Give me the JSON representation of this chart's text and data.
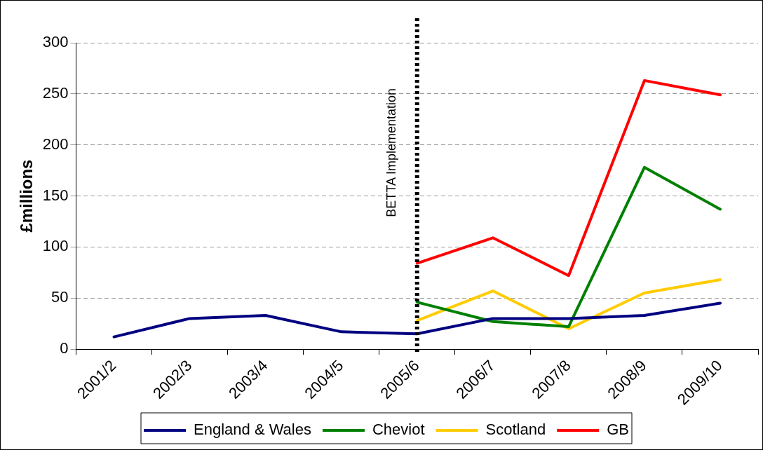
{
  "chart_data": {
    "type": "line",
    "ylabel": "£millions",
    "categories": [
      "2001/2",
      "2002/3",
      "2003/4",
      "2004/5",
      "2005/6",
      "2006/7",
      "2007/8",
      "2008/9",
      "2009/10"
    ],
    "series": [
      {
        "name": "England & Wales",
        "color": "#000080",
        "values": [
          12,
          30,
          33,
          17,
          15,
          30,
          30,
          33,
          45
        ]
      },
      {
        "name": "Cheviot",
        "color": "#008000",
        "values": [
          null,
          null,
          null,
          null,
          46,
          27,
          22,
          178,
          137
        ]
      },
      {
        "name": "Scotland",
        "color": "#ffcc00",
        "values": [
          null,
          null,
          null,
          null,
          28,
          57,
          20,
          55,
          68
        ]
      },
      {
        "name": "GB",
        "color": "#ff0000",
        "values": [
          null,
          null,
          null,
          null,
          84,
          109,
          72,
          263,
          249
        ]
      }
    ],
    "ylim": [
      0,
      300
    ],
    "yticks": [
      0,
      50,
      100,
      150,
      200,
      250,
      300
    ],
    "grid": "y",
    "legend": "bottom",
    "marker": "none",
    "line_style": "solid",
    "ref_lines": [
      {
        "axis": "x",
        "value": "2005/6",
        "label": "BETTA Implementation",
        "color": "#000000",
        "line_style": "dotted"
      }
    ]
  }
}
